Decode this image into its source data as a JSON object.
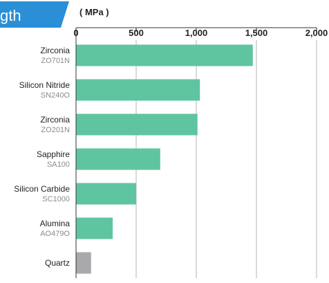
{
  "banner": {
    "text": "gth",
    "color": "#2a8fd6"
  },
  "chart_data": {
    "type": "bar",
    "orientation": "horizontal",
    "unit": "( MPa )",
    "xlim": [
      0,
      2000
    ],
    "ticks": [
      0,
      500,
      1000,
      1500,
      2000
    ],
    "tick_labels": [
      "0",
      "500",
      "1,000",
      "1,500",
      "2,000"
    ],
    "grid": true,
    "categories": [
      {
        "name": "Zirconia",
        "code": "ZO701N",
        "value": 1470,
        "color": "#5ec5a0"
      },
      {
        "name": "Silicon Nitride",
        "code": "SN240O",
        "value": 1030,
        "color": "#5ec5a0"
      },
      {
        "name": "Zirconia",
        "code": "ZO201N",
        "value": 1010,
        "color": "#5ec5a0"
      },
      {
        "name": "Sapphire",
        "code": "SA100",
        "value": 700,
        "color": "#5ec5a0"
      },
      {
        "name": "Silicon Carbide",
        "code": "SC1000",
        "value": 500,
        "color": "#5ec5a0"
      },
      {
        "name": "Alumina",
        "code": "AO479O",
        "value": 305,
        "color": "#5ec5a0"
      },
      {
        "name": "Quartz",
        "code": "",
        "value": 125,
        "color": "#a9a9ab"
      }
    ]
  }
}
